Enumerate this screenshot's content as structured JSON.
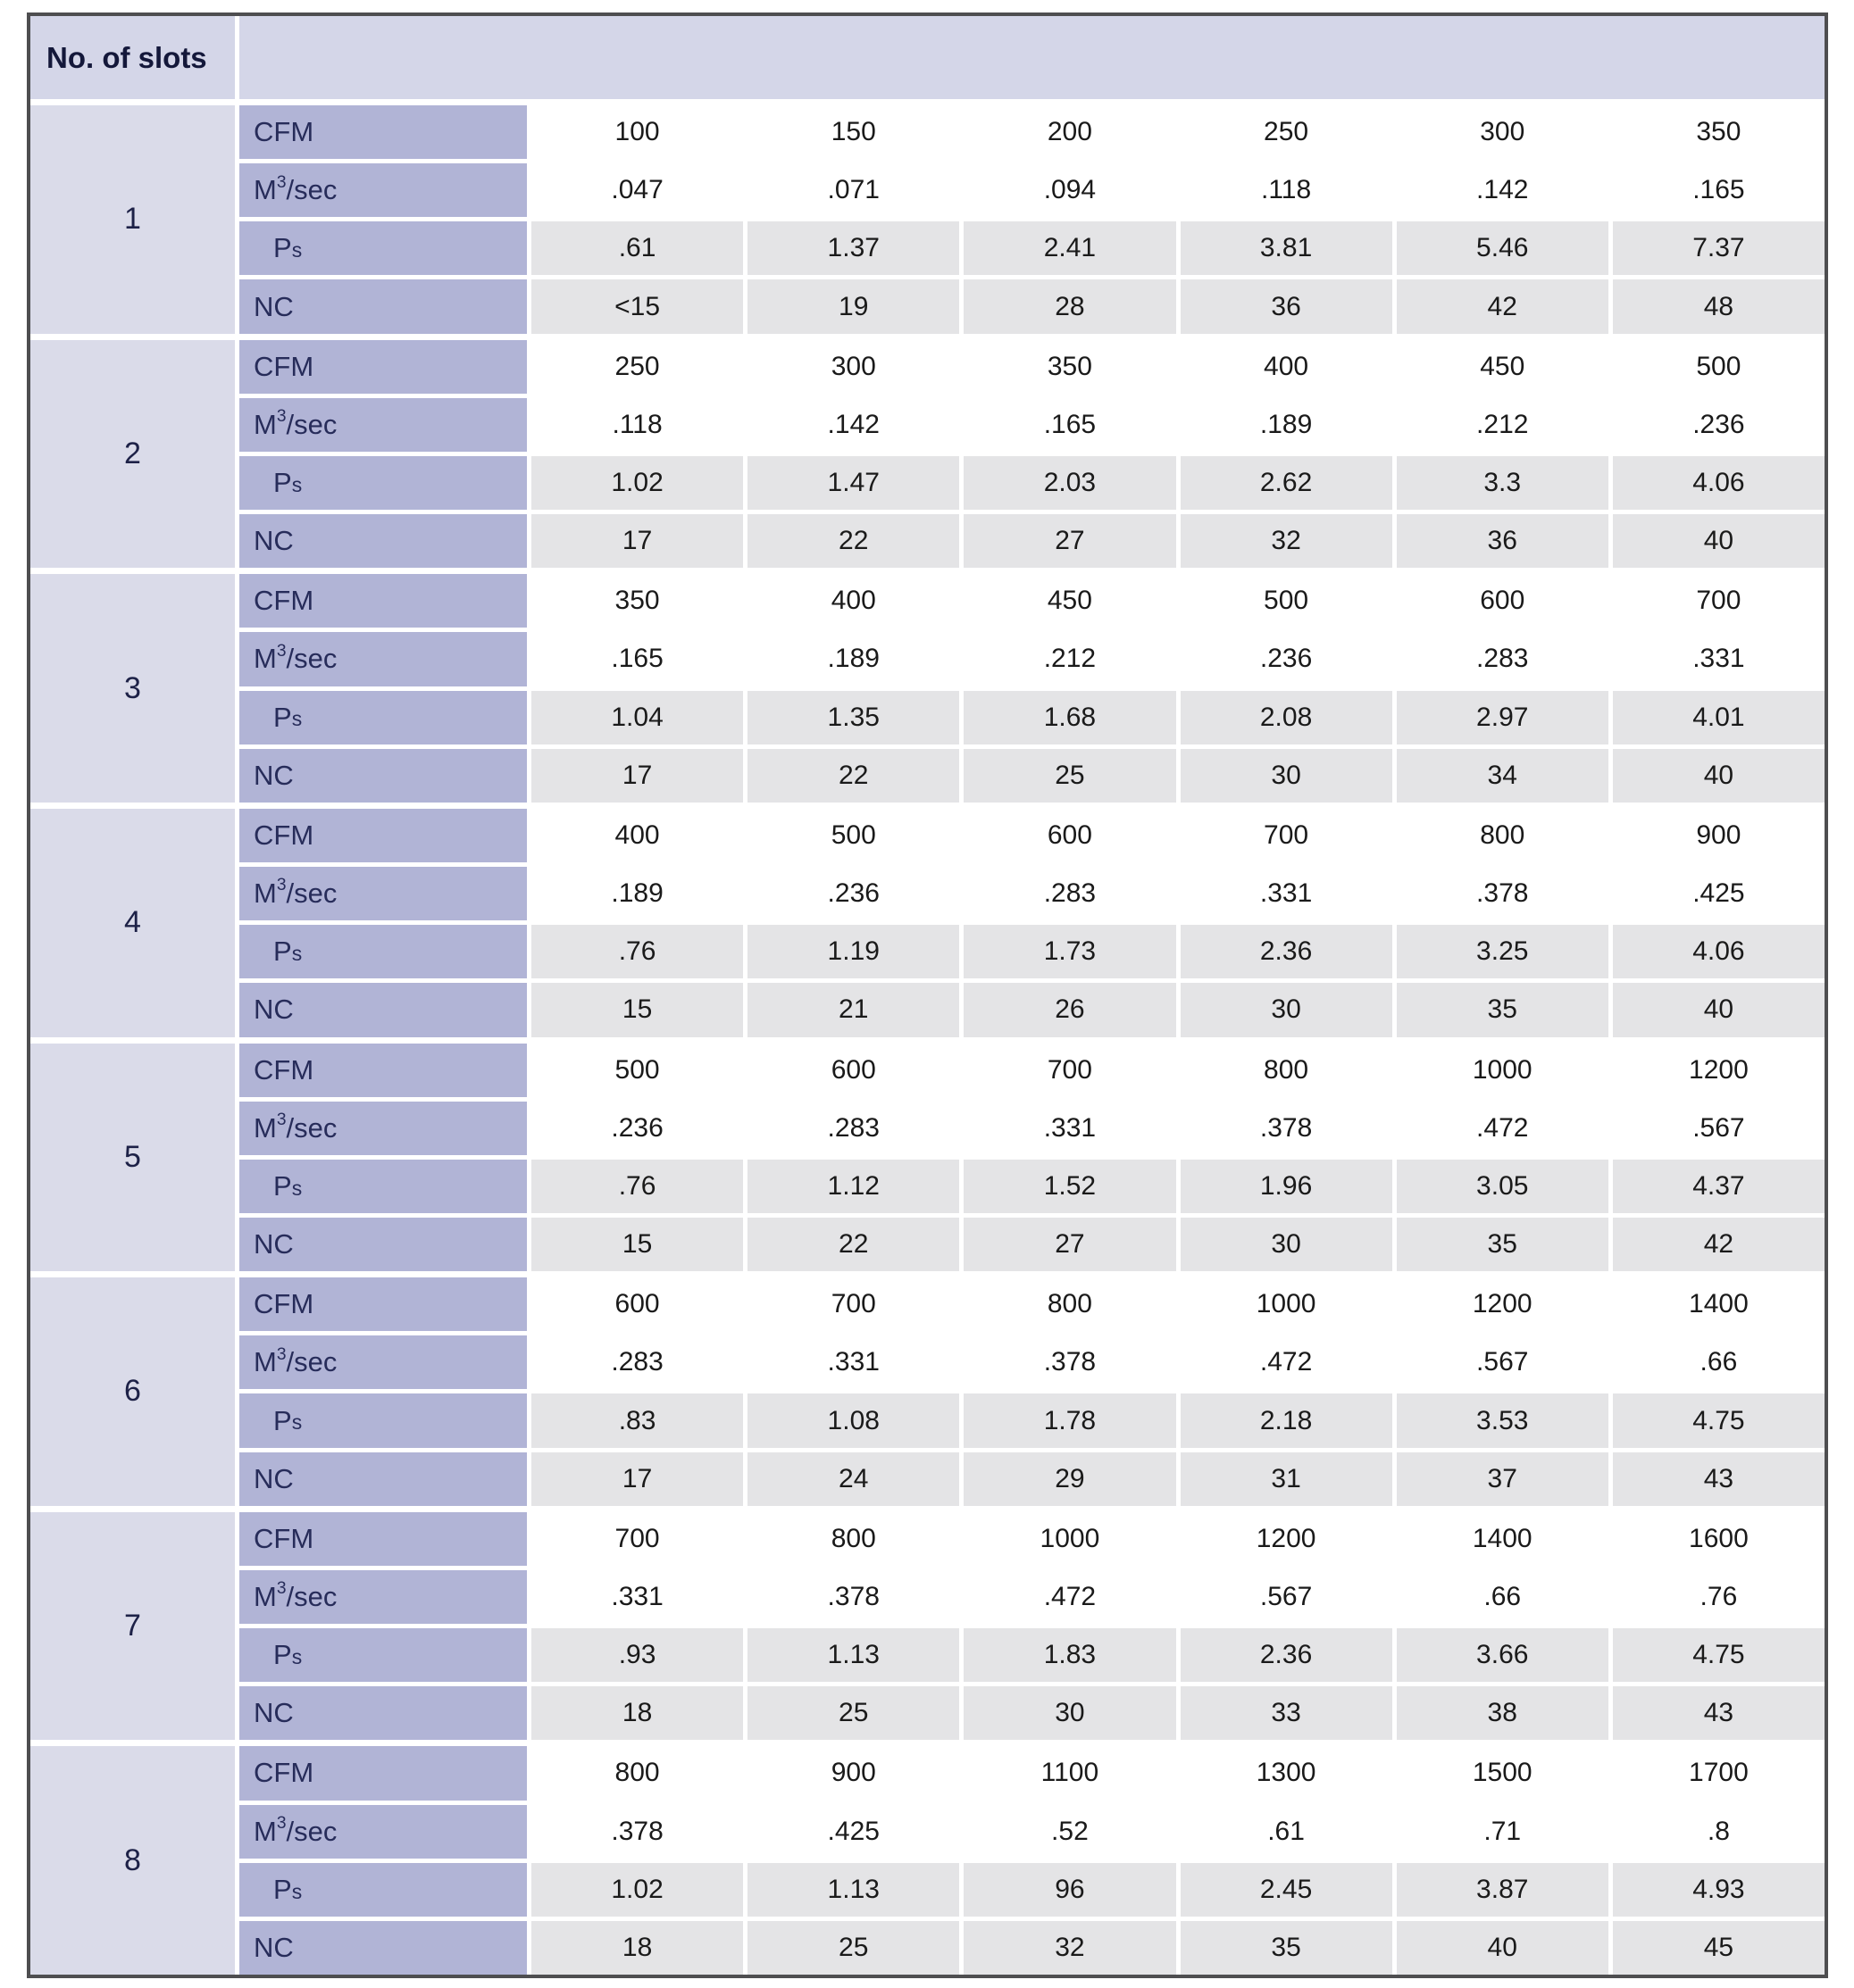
{
  "header": {
    "title": "No. of slots"
  },
  "row_labels": [
    {
      "key": "cfm",
      "parts": [
        {
          "t": "CFM"
        }
      ],
      "indent": false,
      "shade": "white"
    },
    {
      "key": "m3sec",
      "parts": [
        {
          "t": "M"
        },
        {
          "t": "3",
          "style": "sup"
        },
        {
          "t": "/sec"
        }
      ],
      "indent": false,
      "shade": "white"
    },
    {
      "key": "ps",
      "parts": [
        {
          "t": "P"
        },
        {
          "t": "s",
          "style": "sub"
        }
      ],
      "indent": true,
      "shade": "gray"
    },
    {
      "key": "nc",
      "parts": [
        {
          "t": "NC"
        }
      ],
      "indent": false,
      "shade": "gray"
    }
  ],
  "groups": [
    {
      "slot": "1",
      "values": [
        [
          "100",
          "150",
          "200",
          "250",
          "300",
          "350"
        ],
        [
          ".047",
          ".071",
          ".094",
          ".118",
          ".142",
          ".165"
        ],
        [
          ".61",
          "1.37",
          "2.41",
          "3.81",
          "5.46",
          "7.37"
        ],
        [
          "<15",
          "19",
          "28",
          "36",
          "42",
          "48"
        ]
      ]
    },
    {
      "slot": "2",
      "values": [
        [
          "250",
          "300",
          "350",
          "400",
          "450",
          "500"
        ],
        [
          ".118",
          ".142",
          ".165",
          ".189",
          ".212",
          ".236"
        ],
        [
          "1.02",
          "1.47",
          "2.03",
          "2.62",
          "3.3",
          "4.06"
        ],
        [
          "17",
          "22",
          "27",
          "32",
          "36",
          "40"
        ]
      ]
    },
    {
      "slot": "3",
      "values": [
        [
          "350",
          "400",
          "450",
          "500",
          "600",
          "700"
        ],
        [
          ".165",
          ".189",
          ".212",
          ".236",
          ".283",
          ".331"
        ],
        [
          "1.04",
          "1.35",
          "1.68",
          "2.08",
          "2.97",
          "4.01"
        ],
        [
          "17",
          "22",
          "25",
          "30",
          "34",
          "40"
        ]
      ]
    },
    {
      "slot": "4",
      "values": [
        [
          "400",
          "500",
          "600",
          "700",
          "800",
          "900"
        ],
        [
          ".189",
          ".236",
          ".283",
          ".331",
          ".378",
          ".425"
        ],
        [
          ".76",
          "1.19",
          "1.73",
          "2.36",
          "3.25",
          "4.06"
        ],
        [
          "15",
          "21",
          "26",
          "30",
          "35",
          "40"
        ]
      ]
    },
    {
      "slot": "5",
      "values": [
        [
          "500",
          "600",
          "700",
          "800",
          "1000",
          "1200"
        ],
        [
          ".236",
          ".283",
          ".331",
          ".378",
          ".472",
          ".567"
        ],
        [
          ".76",
          "1.12",
          "1.52",
          "1.96",
          "3.05",
          "4.37"
        ],
        [
          "15",
          "22",
          "27",
          "30",
          "35",
          "42"
        ]
      ]
    },
    {
      "slot": "6",
      "values": [
        [
          "600",
          "700",
          "800",
          "1000",
          "1200",
          "1400"
        ],
        [
          ".283",
          ".331",
          ".378",
          ".472",
          ".567",
          ".66"
        ],
        [
          ".83",
          "1.08",
          "1.78",
          "2.18",
          "3.53",
          "4.75"
        ],
        [
          "17",
          "24",
          "29",
          "31",
          "37",
          "43"
        ]
      ]
    },
    {
      "slot": "7",
      "values": [
        [
          "700",
          "800",
          "1000",
          "1200",
          "1400",
          "1600"
        ],
        [
          ".331",
          ".378",
          ".472",
          ".567",
          ".66",
          ".76"
        ],
        [
          ".93",
          "1.13",
          "1.83",
          "2.36",
          "3.66",
          "4.75"
        ],
        [
          "18",
          "25",
          "30",
          "33",
          "38",
          "43"
        ]
      ]
    },
    {
      "slot": "8",
      "values": [
        [
          "800",
          "900",
          "1100",
          "1300",
          "1500",
          "1700"
        ],
        [
          ".378",
          ".425",
          ".52",
          ".61",
          ".71",
          ".8"
        ],
        [
          "1.02",
          "1.13",
          "96",
          "2.45",
          "3.87",
          "4.93"
        ],
        [
          "18",
          "25",
          "32",
          "35",
          "40",
          "45"
        ]
      ]
    }
  ],
  "colors": {
    "header_bg": "#d4d6e8",
    "slot_bg": "#dadbe9",
    "label_bg": "#b1b4d6",
    "gray_row_bg": "#e4e4e6",
    "white_row_bg": "#ffffff",
    "border": "#4e4e50",
    "label_text": "#272c5a",
    "data_text": "#1a1a1a"
  }
}
